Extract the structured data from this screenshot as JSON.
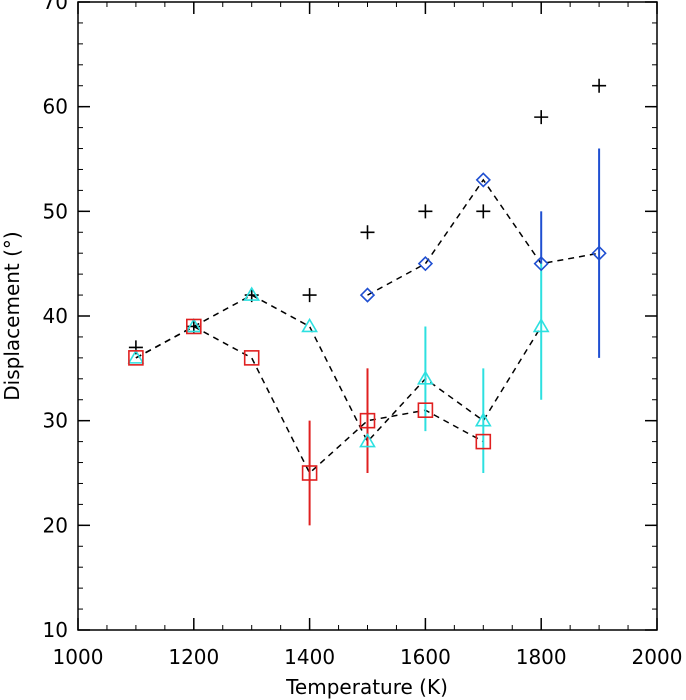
{
  "chart_data": {
    "type": "scatter",
    "title": "",
    "xlabel": "Temperature (K)",
    "ylabel": "Displacement (°)",
    "xlim": [
      1000,
      2000
    ],
    "ylim": [
      10,
      70
    ],
    "xticks": [
      1000,
      1200,
      1400,
      1600,
      1800,
      2000
    ],
    "yticks": [
      10,
      20,
      30,
      40,
      50,
      60,
      70
    ],
    "grid": false,
    "legend": "none",
    "series": [
      {
        "marker": "plus",
        "color": "#000000",
        "line": "none",
        "points": [
          {
            "x": 1100,
            "y": 37
          },
          {
            "x": 1200,
            "y": 39
          },
          {
            "x": 1300,
            "y": 42
          },
          {
            "x": 1400,
            "y": 42
          },
          {
            "x": 1500,
            "y": 48
          },
          {
            "x": 1600,
            "y": 50
          },
          {
            "x": 1700,
            "y": 50
          },
          {
            "x": 1800,
            "y": 59
          },
          {
            "x": 1900,
            "y": 62
          }
        ]
      },
      {
        "marker": "diamond",
        "color": "#1f4fd1",
        "line": "dashed",
        "points": [
          {
            "x": 1500,
            "y": 42
          },
          {
            "x": 1600,
            "y": 45
          },
          {
            "x": 1700,
            "y": 53
          },
          {
            "x": 1800,
            "y": 45,
            "err": [
              45,
              50
            ]
          },
          {
            "x": 1900,
            "y": 46,
            "err": [
              36,
              56
            ]
          }
        ]
      },
      {
        "marker": "triangle",
        "color": "#2de0e0",
        "line": "dashed",
        "points": [
          {
            "x": 1100,
            "y": 36
          },
          {
            "x": 1200,
            "y": 39
          },
          {
            "x": 1300,
            "y": 42
          },
          {
            "x": 1400,
            "y": 39
          },
          {
            "x": 1500,
            "y": 28,
            "err": [
              27,
              30
            ]
          },
          {
            "x": 1600,
            "y": 34,
            "err": [
              29,
              39
            ]
          },
          {
            "x": 1700,
            "y": 30,
            "err": [
              25,
              35
            ]
          },
          {
            "x": 1800,
            "y": 39,
            "err": [
              32,
              45
            ]
          }
        ]
      },
      {
        "marker": "square",
        "color": "#e02020",
        "line": "dashed",
        "points": [
          {
            "x": 1100,
            "y": 36
          },
          {
            "x": 1200,
            "y": 39
          },
          {
            "x": 1300,
            "y": 36
          },
          {
            "x": 1400,
            "y": 25,
            "err": [
              20,
              30
            ]
          },
          {
            "x": 1500,
            "y": 30,
            "err": [
              25,
              35
            ]
          },
          {
            "x": 1600,
            "y": 31
          },
          {
            "x": 1700,
            "y": 28
          }
        ]
      }
    ]
  }
}
